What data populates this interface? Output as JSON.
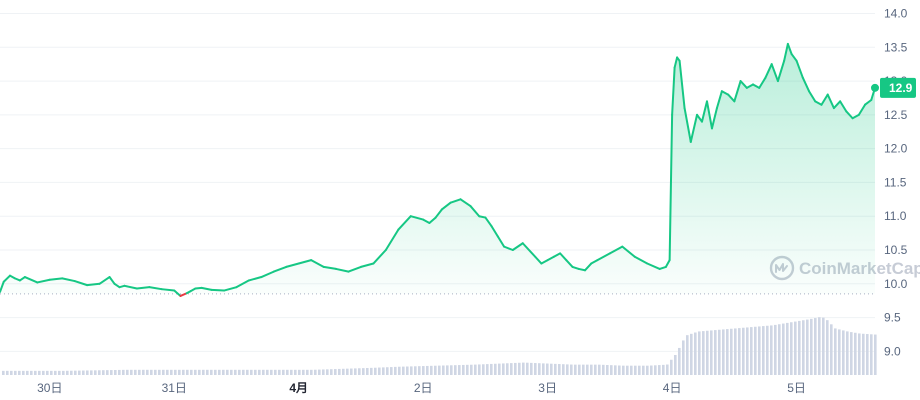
{
  "colors": {
    "up": "#16c784",
    "down": "#ea3943",
    "volume": "#cfd6e4",
    "grid": "#eff2f5",
    "baseline": "#a6b0c3",
    "axis_text": "#58667e"
  },
  "watermark": {
    "text": "CoinMarketCap",
    "icon": "coinmarketcap-logo-icon"
  },
  "price_tag": {
    "label": "12.9",
    "value": 12.9
  },
  "chart_data": {
    "type": "area",
    "title": "",
    "xlabel": "",
    "ylabel": "",
    "ylim": [
      8.65,
      14.2
    ],
    "y_ticks": [
      9.0,
      9.5,
      10.0,
      10.5,
      11.0,
      11.5,
      12.0,
      12.5,
      13.0,
      13.5,
      14.0
    ],
    "y_tick_labels": [
      "9.0",
      "9.5",
      "10.0",
      "10.5",
      "11.0",
      "11.5",
      "12.0",
      "12.5",
      "13.0",
      "13.5",
      "14.0"
    ],
    "x_ticks": [
      {
        "label": "30日",
        "t": 0.4,
        "bold": false
      },
      {
        "label": "31日",
        "t": 1.4,
        "bold": false
      },
      {
        "label": "4月",
        "t": 2.4,
        "bold": true
      },
      {
        "label": "2日",
        "t": 3.4,
        "bold": false
      },
      {
        "label": "3日",
        "t": 4.4,
        "bold": false
      },
      {
        "label": "4日",
        "t": 5.4,
        "bold": false
      },
      {
        "label": "5日",
        "t": 6.4,
        "bold": false
      }
    ],
    "baseline_value": 9.85,
    "grid": true,
    "legend": "none",
    "series": [
      {
        "x": [
          0.0,
          0.03,
          0.08,
          0.12,
          0.16,
          0.2,
          0.3,
          0.4,
          0.5,
          0.6,
          0.7,
          0.8,
          0.88,
          0.92,
          0.96,
          1.0,
          1.1,
          1.2,
          1.3,
          1.4,
          1.45,
          1.5,
          1.53,
          1.57,
          1.62,
          1.7,
          1.8,
          1.9,
          2.0,
          2.1,
          2.2,
          2.3,
          2.4,
          2.5,
          2.6,
          2.7,
          2.8,
          2.9,
          3.0,
          3.1,
          3.2,
          3.3,
          3.4,
          3.45,
          3.5,
          3.55,
          3.62,
          3.7,
          3.78,
          3.85,
          3.9,
          3.95,
          4.0,
          4.05,
          4.12,
          4.2,
          4.3,
          4.35,
          4.4,
          4.45,
          4.5,
          4.55,
          4.6,
          4.65,
          4.7,
          4.75,
          4.8,
          4.9,
          5.0,
          5.1,
          5.2,
          5.3,
          5.35,
          5.38,
          5.4,
          5.42,
          5.44,
          5.46,
          5.5,
          5.55,
          5.6,
          5.64,
          5.68,
          5.72,
          5.76,
          5.8,
          5.85,
          5.9,
          5.95,
          6.0,
          6.05,
          6.1,
          6.15,
          6.2,
          6.25,
          6.3,
          6.33,
          6.36,
          6.4,
          6.45,
          6.5,
          6.55,
          6.6,
          6.65,
          6.7,
          6.75,
          6.8,
          6.85,
          6.9,
          6.95,
          7.0,
          7.03
        ],
        "values": [
          9.88,
          10.03,
          10.12,
          10.08,
          10.05,
          10.1,
          10.02,
          10.06,
          10.08,
          10.04,
          9.98,
          10.0,
          10.1,
          10.0,
          9.95,
          9.97,
          9.93,
          9.95,
          9.92,
          9.9,
          9.82,
          9.86,
          9.89,
          9.93,
          9.94,
          9.91,
          9.9,
          9.95,
          10.05,
          10.1,
          10.18,
          10.25,
          10.3,
          10.35,
          10.25,
          10.22,
          10.18,
          10.25,
          10.3,
          10.5,
          10.8,
          11.0,
          10.95,
          10.9,
          10.98,
          11.1,
          11.2,
          11.25,
          11.15,
          11.0,
          10.98,
          10.85,
          10.7,
          10.55,
          10.5,
          10.6,
          10.4,
          10.3,
          10.35,
          10.4,
          10.45,
          10.35,
          10.25,
          10.22,
          10.2,
          10.3,
          10.35,
          10.45,
          10.55,
          10.4,
          10.3,
          10.22,
          10.25,
          10.35,
          12.5,
          13.2,
          13.35,
          13.3,
          12.6,
          12.1,
          12.5,
          12.4,
          12.7,
          12.3,
          12.6,
          12.85,
          12.8,
          12.7,
          13.0,
          12.9,
          12.95,
          12.9,
          13.05,
          13.25,
          13.0,
          13.3,
          13.55,
          13.4,
          13.3,
          13.05,
          12.85,
          12.7,
          12.65,
          12.8,
          12.6,
          12.7,
          12.55,
          12.45,
          12.5,
          12.65,
          12.72,
          12.9
        ]
      }
    ],
    "volume": {
      "x": [
        0.0,
        0.5,
        1.0,
        1.5,
        2.0,
        2.5,
        3.0,
        3.2,
        3.5,
        3.8,
        4.0,
        4.2,
        4.4,
        4.6,
        4.8,
        5.0,
        5.2,
        5.35,
        5.42,
        5.5,
        5.6,
        5.7,
        5.8,
        5.9,
        6.0,
        6.1,
        6.2,
        6.3,
        6.4,
        6.5,
        6.58,
        6.62,
        6.7,
        6.8,
        6.9,
        7.03
      ],
      "values": [
        0.04,
        0.04,
        0.05,
        0.05,
        0.05,
        0.05,
        0.07,
        0.08,
        0.09,
        0.1,
        0.11,
        0.12,
        0.11,
        0.1,
        0.1,
        0.09,
        0.09,
        0.1,
        0.2,
        0.38,
        0.42,
        0.43,
        0.44,
        0.45,
        0.46,
        0.47,
        0.48,
        0.5,
        0.52,
        0.54,
        0.56,
        0.55,
        0.45,
        0.42,
        0.4,
        0.39
      ]
    }
  }
}
